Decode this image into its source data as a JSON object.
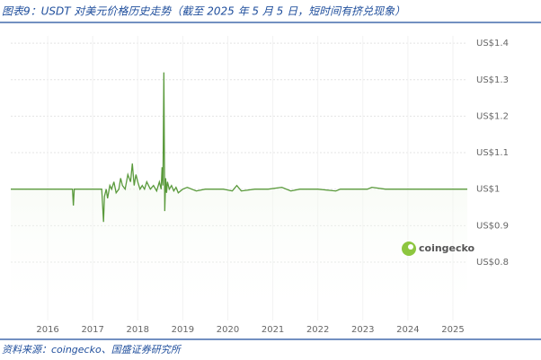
{
  "chart_data": {
    "type": "line",
    "title": "图表9：USDT 对美元价格历史走势（截至 2025 年 5 月 5 日，短时间有挤兑现象）",
    "source": "资料来源：coingecko、国盛证券研究所",
    "annotation": "coingecko",
    "color": "#5a9a3c",
    "x": [
      2015.18,
      2016.55,
      2016.57,
      2016.59,
      2017.2,
      2017.24,
      2017.26,
      2017.3,
      2017.33,
      2017.38,
      2017.42,
      2017.47,
      2017.52,
      2017.58,
      2017.62,
      2017.66,
      2017.72,
      2017.78,
      2017.84,
      2017.88,
      2017.92,
      2017.96,
      2018.0,
      2018.05,
      2018.1,
      2018.15,
      2018.2,
      2018.28,
      2018.35,
      2018.42,
      2018.48,
      2018.52,
      2018.54,
      2018.56,
      2018.58,
      2018.6,
      2018.62,
      2018.64,
      2018.66,
      2018.7,
      2018.75,
      2018.8,
      2018.85,
      2018.9,
      2019.0,
      2019.1,
      2019.3,
      2019.5,
      2019.7,
      2019.9,
      2020.1,
      2020.2,
      2020.3,
      2020.6,
      2020.9,
      2021.2,
      2021.4,
      2021.6,
      2022.0,
      2022.4,
      2022.5,
      2022.8,
      2023.1,
      2023.2,
      2023.5,
      2023.9,
      2024.2,
      2024.6,
      2025.0,
      2025.32
    ],
    "values": [
      1.0,
      1.0,
      0.955,
      1.0,
      1.0,
      0.91,
      0.98,
      1.0,
      0.975,
      1.01,
      1.0,
      1.02,
      0.99,
      1.0,
      1.03,
      1.01,
      1.0,
      1.04,
      1.02,
      1.07,
      1.01,
      1.04,
      1.02,
      1.0,
      1.01,
      1.0,
      1.02,
      1.0,
      1.01,
      0.995,
      1.02,
      1.0,
      1.06,
      1.01,
      1.32,
      0.94,
      1.03,
      0.99,
      1.02,
      1.0,
      1.01,
      0.995,
      1.005,
      0.99,
      1.0,
      1.005,
      0.995,
      1.0,
      1.0,
      1.0,
      0.995,
      1.01,
      0.995,
      1.0,
      1.0,
      1.005,
      0.995,
      1.0,
      1.0,
      0.995,
      1.0,
      1.0,
      1.0,
      1.005,
      1.0,
      1.0,
      1.0,
      1.0,
      1.0,
      1.0
    ],
    "xlim": [
      2015.18,
      2025.32
    ],
    "xticks": [
      2016,
      2017,
      2018,
      2019,
      2020,
      2021,
      2022,
      2023,
      2024,
      2025
    ],
    "ylim": [
      0.64,
      1.42
    ],
    "yticks": [
      {
        "value": 0.8,
        "label": "US$0.8"
      },
      {
        "value": 0.9,
        "label": "US$0.9"
      },
      {
        "value": 1,
        "label": "US$1"
      },
      {
        "value": 1.1,
        "label": "US$1.1"
      },
      {
        "value": 1.2,
        "label": "US$1.2"
      },
      {
        "value": 1.3,
        "label": "US$1.3"
      },
      {
        "value": 1.4,
        "label": "US$1.4"
      }
    ],
    "grid": true
  }
}
